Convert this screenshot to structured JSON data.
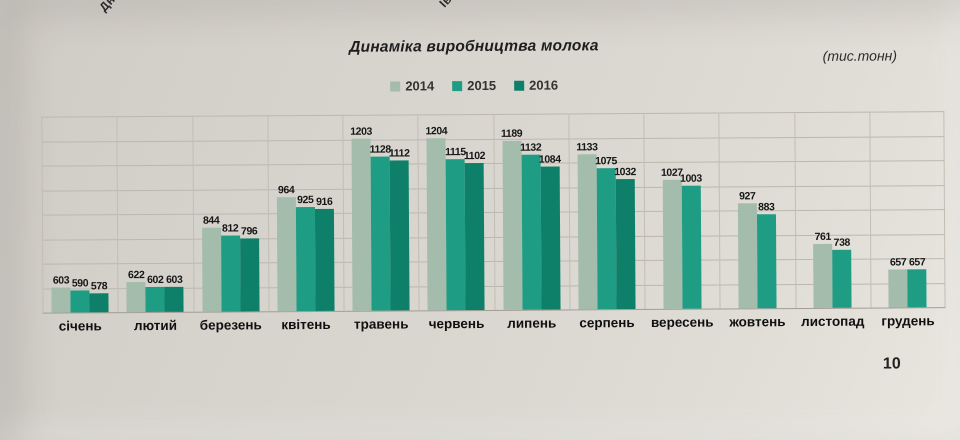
{
  "page": {
    "number": "10"
  },
  "header_fragments": [
    {
      "text": "Дніпр"
    },
    {
      "text": "Іван"
    }
  ],
  "chart_data": {
    "type": "bar",
    "title": "Динаміка виробництва молока",
    "unit_label": "(тис.тонн)",
    "categories": [
      "січень",
      "лютий",
      "березень",
      "квітень",
      "травень",
      "червень",
      "липень",
      "серпень",
      "вересень",
      "жовтень",
      "листопад",
      "грудень"
    ],
    "series": [
      {
        "name": "2014",
        "color": "#a3bcab",
        "values": [
          603,
          622,
          844,
          964,
          1203,
          1204,
          1189,
          1133,
          1027,
          927,
          761,
          657
        ]
      },
      {
        "name": "2015",
        "color": "#1f9c84",
        "values": [
          590,
          602,
          812,
          925,
          1128,
          1115,
          1132,
          1075,
          1003,
          883,
          738,
          657
        ]
      },
      {
        "name": "2016",
        "color": "#0e8069",
        "values": [
          578,
          603,
          796,
          916,
          1112,
          1102,
          1084,
          1032,
          null,
          null,
          null,
          null
        ]
      }
    ],
    "ylim": [
      500,
      1300
    ],
    "grid_step": 100,
    "grid": true,
    "legend_position": "top"
  }
}
